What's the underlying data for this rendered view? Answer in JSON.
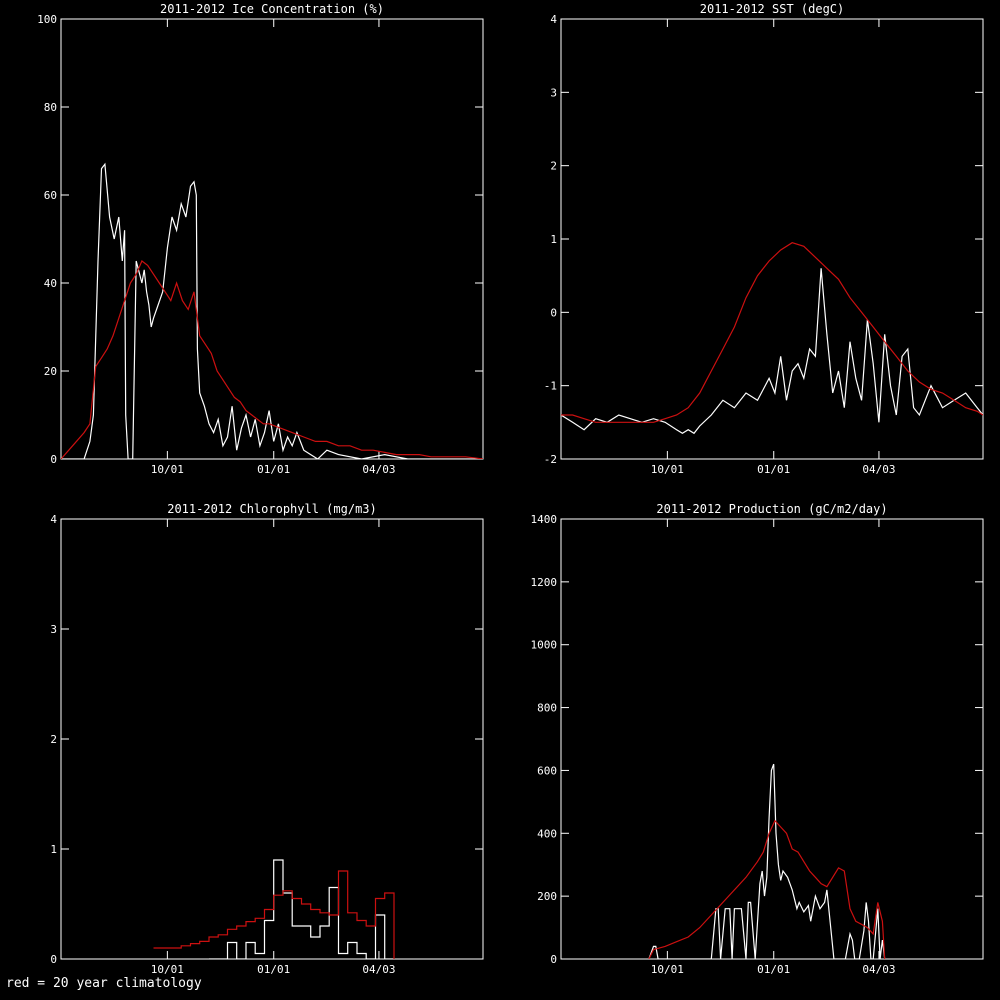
{
  "footnote": "red = 20 year climatology",
  "colors": {
    "background": "#000000",
    "observed": "#ffffff",
    "climatology": "#cc1010"
  },
  "chart_data": [
    {
      "type": "line",
      "title": "2011-2012 Ice Concentration (%)",
      "xlabel": "",
      "ylabel": "",
      "x_ticks": [
        "10/01",
        "01/01",
        "04/03"
      ],
      "x_tick_days": [
        92,
        184,
        275
      ],
      "x_range_days": [
        0,
        365
      ],
      "ylim": [
        0,
        100
      ],
      "y_ticks": [
        0,
        20,
        40,
        60,
        80,
        100
      ],
      "series": [
        {
          "color": "white",
          "x": [
            0,
            20,
            25,
            28,
            32,
            35,
            38,
            42,
            46,
            50,
            53,
            55,
            56,
            58,
            62,
            65,
            70,
            72,
            74,
            76,
            78,
            80,
            84,
            88,
            92,
            96,
            100,
            104,
            108,
            112,
            115,
            117,
            118,
            120,
            124,
            128,
            132,
            136,
            140,
            144,
            148,
            152,
            156,
            160,
            164,
            168,
            172,
            176,
            180,
            184,
            188,
            192,
            196,
            200,
            204,
            210,
            216,
            222,
            230,
            240,
            260,
            280,
            300,
            330,
            365
          ],
          "y": [
            0,
            0,
            4,
            10,
            45,
            66,
            67,
            55,
            50,
            55,
            45,
            52,
            10,
            0,
            0,
            45,
            40,
            43,
            38,
            35,
            30,
            32,
            35,
            38,
            48,
            55,
            52,
            58,
            55,
            62,
            63,
            60,
            25,
            15,
            12,
            8,
            6,
            9,
            3,
            5,
            12,
            2,
            7,
            10,
            5,
            9,
            3,
            6,
            11,
            4,
            8,
            2,
            5,
            3,
            6,
            2,
            1,
            0,
            2,
            1,
            0,
            1,
            0,
            0,
            0
          ]
        },
        {
          "name": "20 year climatology",
          "color": "red",
          "x": [
            0,
            10,
            20,
            25,
            30,
            35,
            40,
            45,
            50,
            55,
            60,
            65,
            70,
            75,
            80,
            85,
            90,
            95,
            100,
            105,
            110,
            115,
            120,
            125,
            130,
            135,
            140,
            145,
            150,
            155,
            160,
            165,
            170,
            175,
            180,
            190,
            200,
            210,
            220,
            230,
            240,
            250,
            260,
            270,
            280,
            290,
            300,
            310,
            320,
            330,
            340,
            350,
            365
          ],
          "y": [
            0,
            3,
            6,
            8,
            21,
            23,
            25,
            28,
            32,
            36,
            40,
            42,
            45,
            44,
            42,
            40,
            38,
            36,
            40,
            36,
            34,
            38,
            28,
            26,
            24,
            20,
            18,
            16,
            14,
            13,
            11,
            10,
            9,
            8,
            8,
            7,
            6,
            5,
            4,
            4,
            3,
            3,
            2,
            2,
            1.5,
            1,
            1,
            1,
            0.5,
            0.5,
            0.5,
            0.5,
            0
          ]
        }
      ]
    },
    {
      "type": "line",
      "title": "2011-2012 SST (degC)",
      "xlabel": "",
      "ylabel": "",
      "x_ticks": [
        "10/01",
        "01/01",
        "04/03"
      ],
      "x_tick_days": [
        92,
        184,
        275
      ],
      "x_range_days": [
        0,
        365
      ],
      "ylim": [
        -2,
        4
      ],
      "y_ticks": [
        -2,
        -1,
        0,
        1,
        2,
        3,
        4
      ],
      "series": [
        {
          "color": "white",
          "x": [
            0,
            10,
            20,
            30,
            40,
            50,
            60,
            70,
            80,
            90,
            100,
            105,
            110,
            115,
            120,
            130,
            140,
            150,
            160,
            170,
            180,
            185,
            190,
            195,
            200,
            205,
            210,
            215,
            220,
            225,
            230,
            235,
            240,
            245,
            250,
            255,
            260,
            265,
            270,
            275,
            280,
            285,
            290,
            295,
            300,
            305,
            310,
            315,
            320,
            330,
            340,
            350,
            360,
            365
          ],
          "y": [
            -1.4,
            -1.5,
            -1.6,
            -1.45,
            -1.5,
            -1.4,
            -1.45,
            -1.5,
            -1.45,
            -1.5,
            -1.6,
            -1.65,
            -1.6,
            -1.65,
            -1.55,
            -1.4,
            -1.2,
            -1.3,
            -1.1,
            -1.2,
            -0.9,
            -1.1,
            -0.6,
            -1.2,
            -0.8,
            -0.7,
            -0.9,
            -0.5,
            -0.6,
            0.6,
            -0.3,
            -1.1,
            -0.8,
            -1.3,
            -0.4,
            -0.9,
            -1.2,
            -0.1,
            -0.7,
            -1.5,
            -0.3,
            -1.0,
            -1.4,
            -0.6,
            -0.5,
            -1.3,
            -1.4,
            -1.2,
            -1.0,
            -1.3,
            -1.2,
            -1.1,
            -1.3,
            -1.4
          ]
        },
        {
          "name": "20 year climatology",
          "color": "red",
          "x": [
            0,
            10,
            20,
            30,
            40,
            50,
            60,
            70,
            80,
            90,
            100,
            110,
            120,
            130,
            140,
            150,
            160,
            170,
            180,
            190,
            200,
            210,
            220,
            230,
            240,
            250,
            260,
            270,
            280,
            290,
            300,
            310,
            320,
            330,
            340,
            350,
            360,
            365
          ],
          "y": [
            -1.4,
            -1.4,
            -1.45,
            -1.5,
            -1.5,
            -1.5,
            -1.5,
            -1.5,
            -1.5,
            -1.45,
            -1.4,
            -1.3,
            -1.1,
            -0.8,
            -0.5,
            -0.2,
            0.2,
            0.5,
            0.7,
            0.85,
            0.95,
            0.9,
            0.75,
            0.6,
            0.45,
            0.2,
            0.0,
            -0.2,
            -0.4,
            -0.6,
            -0.8,
            -0.95,
            -1.05,
            -1.1,
            -1.2,
            -1.3,
            -1.35,
            -1.4
          ]
        }
      ]
    },
    {
      "type": "line",
      "title": "2011-2012 Chlorophyll (mg/m3)",
      "xlabel": "",
      "ylabel": "",
      "step": true,
      "x_ticks": [
        "10/01",
        "01/01",
        "04/03"
      ],
      "x_tick_days": [
        92,
        184,
        275
      ],
      "x_range_days": [
        0,
        365
      ],
      "ylim": [
        0,
        4
      ],
      "y_ticks": [
        0,
        1,
        2,
        3,
        4
      ],
      "series": [
        {
          "color": "white",
          "x": [
            128,
            136,
            144,
            152,
            160,
            168,
            176,
            184,
            192,
            200,
            208,
            216,
            224,
            232,
            240,
            248,
            256,
            264,
            272,
            280,
            288
          ],
          "y": [
            0,
            0,
            0.15,
            0,
            0.15,
            0.05,
            0.35,
            0.9,
            0.6,
            0.3,
            0.3,
            0.2,
            0.3,
            0.65,
            0.05,
            0.15,
            0.05,
            0,
            0.4,
            0,
            0
          ]
        },
        {
          "name": "20 year climatology",
          "color": "red",
          "x": [
            80,
            88,
            96,
            104,
            112,
            120,
            128,
            136,
            144,
            152,
            160,
            168,
            176,
            184,
            192,
            200,
            208,
            216,
            224,
            232,
            240,
            248,
            256,
            264,
            272,
            280,
            288
          ],
          "y": [
            0.1,
            0.1,
            0.1,
            0.12,
            0.14,
            0.16,
            0.2,
            0.22,
            0.27,
            0.3,
            0.34,
            0.37,
            0.45,
            0.58,
            0.62,
            0.55,
            0.5,
            0.45,
            0.42,
            0.4,
            0.8,
            0.42,
            0.35,
            0.3,
            0.55,
            0.6,
            0
          ]
        }
      ]
    },
    {
      "type": "line",
      "title": "2011-2012 Production (gC/m2/day)",
      "xlabel": "",
      "ylabel": "",
      "x_ticks": [
        "10/01",
        "01/01",
        "04/03"
      ],
      "x_tick_days": [
        92,
        184,
        275
      ],
      "x_range_days": [
        0,
        365
      ],
      "ylim": [
        0,
        1400
      ],
      "y_ticks": [
        0,
        200,
        400,
        600,
        800,
        1000,
        1200,
        1400
      ],
      "series": [
        {
          "color": "white",
          "x": [
            76,
            80,
            82,
            84,
            130,
            134,
            136,
            138,
            142,
            146,
            148,
            150,
            156,
            160,
            162,
            164,
            168,
            172,
            174,
            176,
            178,
            180,
            182,
            184,
            186,
            188,
            190,
            192,
            196,
            200,
            204,
            206,
            210,
            214,
            216,
            220,
            224,
            228,
            230,
            236,
            246,
            250,
            252,
            254,
            258,
            262,
            264,
            266,
            268,
            270,
            274,
            276,
            278,
            280
          ],
          "y": [
            0,
            40,
            40,
            0,
            0,
            160,
            160,
            0,
            160,
            160,
            0,
            160,
            160,
            0,
            180,
            180,
            0,
            240,
            280,
            200,
            260,
            450,
            600,
            620,
            400,
            300,
            250,
            280,
            260,
            220,
            160,
            180,
            150,
            170,
            120,
            200,
            160,
            180,
            220,
            0,
            0,
            80,
            60,
            0,
            0,
            90,
            180,
            120,
            0,
            0,
            160,
            0,
            60,
            0
          ]
        },
        {
          "name": "20 year climatology",
          "color": "red",
          "x": [
            76,
            80,
            90,
            100,
            110,
            120,
            130,
            140,
            150,
            160,
            170,
            175,
            180,
            185,
            190,
            195,
            200,
            205,
            210,
            215,
            220,
            225,
            230,
            235,
            240,
            245,
            250,
            255,
            260,
            265,
            270,
            274,
            278,
            280
          ],
          "y": [
            0,
            30,
            40,
            55,
            70,
            100,
            140,
            180,
            220,
            260,
            310,
            340,
            400,
            440,
            420,
            400,
            350,
            340,
            310,
            280,
            260,
            240,
            230,
            260,
            290,
            280,
            160,
            120,
            110,
            100,
            80,
            180,
            120,
            0
          ]
        }
      ]
    }
  ]
}
